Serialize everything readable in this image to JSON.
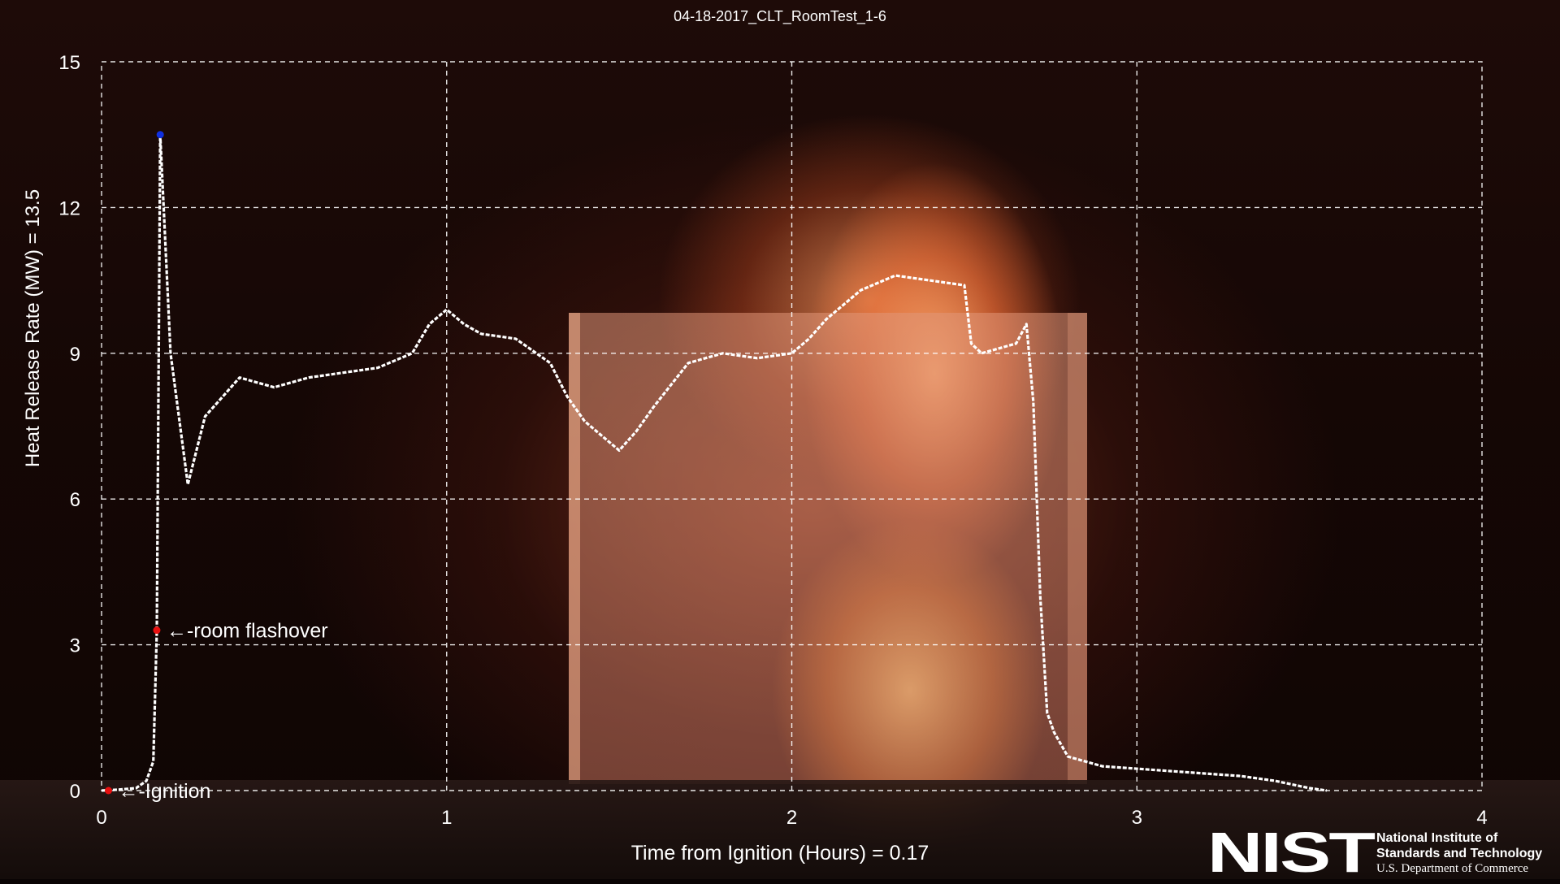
{
  "chart_data": {
    "type": "line",
    "title": "04-18-2017_CLT_RoomTest_1-6",
    "xlabel": "Time from Ignition (Hours) = 0.17",
    "ylabel": "Heat Release Rate  (MW)   = 13.5",
    "xlim": [
      0,
      4
    ],
    "ylim": [
      0,
      15
    ],
    "x_ticks": [
      "0",
      "1",
      "2",
      "3",
      "4"
    ],
    "y_ticks": [
      "0",
      "3",
      "6",
      "9",
      "12",
      "15"
    ],
    "grid": true,
    "series": [
      {
        "name": "",
        "x": [
          0.0,
          0.05,
          0.1,
          0.13,
          0.15,
          0.16,
          0.17,
          0.2,
          0.25,
          0.3,
          0.35,
          0.4,
          0.5,
          0.6,
          0.7,
          0.8,
          0.9,
          0.95,
          1.0,
          1.05,
          1.1,
          1.2,
          1.3,
          1.35,
          1.4,
          1.45,
          1.5,
          1.55,
          1.6,
          1.7,
          1.8,
          1.9,
          2.0,
          2.05,
          2.1,
          2.2,
          2.3,
          2.4,
          2.5,
          2.52,
          2.55,
          2.6,
          2.65,
          2.68,
          2.7,
          2.72,
          2.74,
          2.76,
          2.8,
          2.9,
          3.0,
          3.1,
          3.2,
          3.3,
          3.4,
          3.5,
          3.55
        ],
        "y": [
          0.0,
          0.02,
          0.05,
          0.2,
          0.6,
          3.3,
          13.5,
          9.0,
          6.3,
          7.7,
          8.1,
          8.5,
          8.3,
          8.5,
          8.6,
          8.7,
          9.0,
          9.6,
          9.9,
          9.6,
          9.4,
          9.3,
          8.8,
          8.1,
          7.6,
          7.3,
          7.0,
          7.4,
          7.9,
          8.8,
          9.0,
          8.9,
          9.0,
          9.3,
          9.7,
          10.3,
          10.6,
          10.5,
          10.4,
          9.2,
          9.0,
          9.1,
          9.2,
          9.6,
          8.0,
          4.0,
          1.6,
          1.2,
          0.7,
          0.5,
          0.45,
          0.4,
          0.35,
          0.3,
          0.2,
          0.05,
          0.0
        ]
      }
    ],
    "markers": [
      {
        "label": "←-Ignition",
        "x": 0.02,
        "y": 0.0,
        "color": "#e81010"
      },
      {
        "label": "←-room flashover",
        "x": 0.16,
        "y": 3.3,
        "color": "#e81010"
      },
      {
        "label": "",
        "x": 0.17,
        "y": 13.5,
        "color": "#1030e0"
      }
    ]
  },
  "logo": {
    "mark": "NIST",
    "line1": "National Institute of",
    "line2": "Standards and Technology",
    "line3": "U.S. Department of Commerce"
  },
  "colors": {
    "curve": "#ffffff",
    "grid": "#ffffff"
  }
}
